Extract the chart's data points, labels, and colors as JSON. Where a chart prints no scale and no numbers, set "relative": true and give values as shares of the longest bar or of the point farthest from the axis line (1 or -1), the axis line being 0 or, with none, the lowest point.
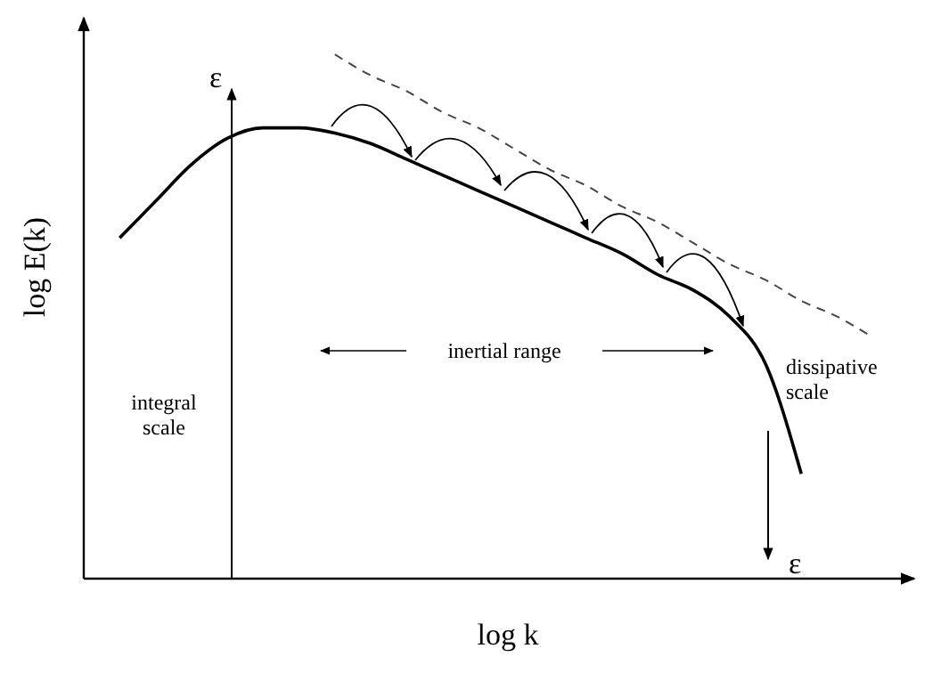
{
  "chart_data": {
    "type": "line",
    "relative": true,
    "xlabel": "log k",
    "ylabel": "log E(k)",
    "categories": [
      null,
      null,
      null,
      null,
      null,
      null,
      null,
      null,
      null,
      null,
      null,
      null,
      null,
      null,
      null,
      null,
      null,
      null,
      null,
      null,
      null,
      null
    ],
    "series": [
      {
        "color": "#000000",
        "line_style": "solid",
        "values": [
          0.65,
          0.72,
          0.79,
          0.84,
          0.86,
          0.86,
          0.85,
          0.83,
          0.8,
          0.77,
          0.74,
          0.71,
          0.68,
          0.65,
          0.62,
          0.58,
          0.55,
          0.5,
          0.41,
          0.2,
          null,
          null
        ]
      },
      {
        "color": "#444444",
        "line_style": "dashed",
        "values": [
          null,
          null,
          null,
          null,
          null,
          null,
          1.0,
          0.96,
          0.93,
          0.89,
          0.86,
          0.82,
          0.78,
          0.75,
          0.71,
          0.68,
          0.64,
          0.6,
          0.57,
          0.53,
          0.5,
          0.46
        ]
      }
    ],
    "annotations": [
      "ε",
      "integral scale",
      "inertial range",
      "dissipative scale",
      "ε"
    ]
  }
}
